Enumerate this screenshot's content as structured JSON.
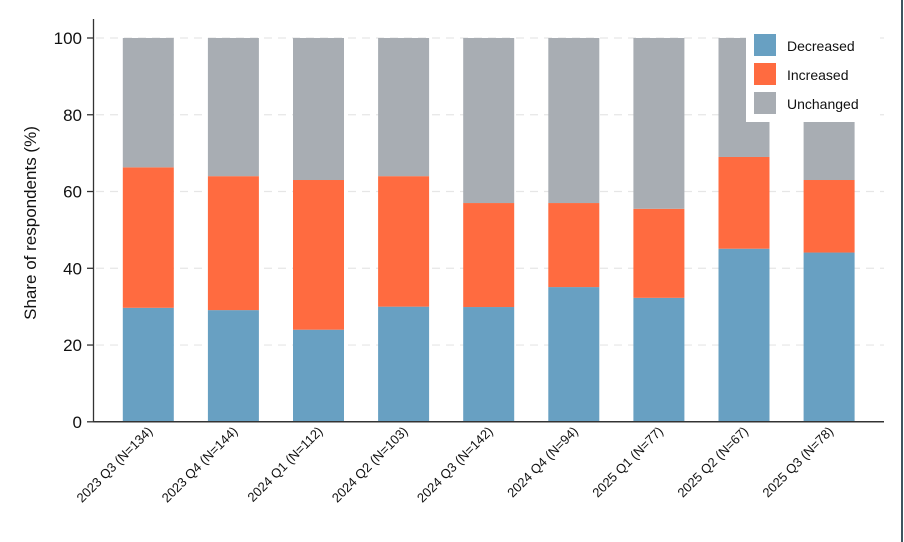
{
  "colors": {
    "decreased": "#68a0c2",
    "increased": "#ff6b40",
    "unchanged": "#a8adb3",
    "axis": "#333333",
    "grid": "#e6e6e6",
    "border": "#3e5560"
  },
  "chart_data": {
    "type": "bar",
    "stacked": true,
    "title": "",
    "xlabel": "",
    "ylabel": "Share of respondents (%)",
    "ylim": [
      0,
      100
    ],
    "yticks": [
      0,
      20,
      40,
      60,
      80,
      100
    ],
    "grid": {
      "y": true,
      "style": "dashed"
    },
    "legend_position": "upper right",
    "categories": [
      "2023 Q3 (N=134)",
      "2023 Q4 (N=144)",
      "2024 Q1 (N=112)",
      "2024 Q2 (N=103)",
      "2024 Q3 (N=142)",
      "2024 Q4 (N=94)",
      "2025 Q1 (N=77)",
      "2025 Q2 (N=67)",
      "2025 Q3 (N=78)"
    ],
    "series": [
      {
        "name": "Decreased",
        "color": "#68a0c2",
        "values": [
          29.7,
          29.1,
          24.0,
          30.0,
          29.9,
          35.1,
          32.3,
          45.1,
          44.1
        ]
      },
      {
        "name": "Increased",
        "color": "#ff6b40",
        "values": [
          36.6,
          34.9,
          39.0,
          34.0,
          27.1,
          21.9,
          23.2,
          23.9,
          18.9
        ]
      },
      {
        "name": "Unchanged",
        "color": "#a8adb3",
        "values": [
          33.7,
          36.0,
          37.0,
          36.0,
          43.0,
          43.0,
          44.5,
          31.0,
          37.0
        ]
      }
    ]
  },
  "legend": {
    "items": [
      {
        "label": "Decreased",
        "color": "#68a0c2"
      },
      {
        "label": "Increased",
        "color": "#ff6b40"
      },
      {
        "label": "Unchanged",
        "color": "#a8adb3"
      }
    ]
  }
}
